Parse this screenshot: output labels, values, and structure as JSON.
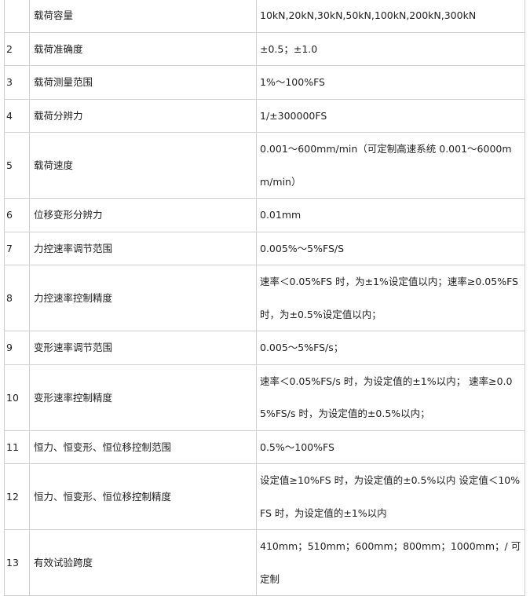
{
  "table": {
    "rows": [
      [
        null,
        "载荷容量",
        "10kN,20kN,30kN,50kN,100kN,200kN,300kN"
      ],
      [
        "2",
        "载荷准确度",
        "±0.5；±1.0"
      ],
      [
        "3",
        "载荷测量范围",
        "1%～100%FS"
      ],
      [
        "4",
        "载荷分辨力",
        "1/±300000FS"
      ],
      [
        "5",
        "载荷速度",
        "0.001～600mm/min（可定制高速系统 0.001～6000mm/min）"
      ],
      [
        "6",
        "位移变形分辨力",
        "0.01mm"
      ],
      [
        "7",
        "力控速率调节范围",
        "0.005%～5%FS/S"
      ],
      [
        "8",
        "力控速率控制精度",
        "速率＜0.05%FS 时，为±1%设定值以内；速率≥0.05%FS 时，为±0.5%设定值以内；"
      ],
      [
        "9",
        "变形速率调节范围",
        "0.005～5%FS/s；"
      ],
      [
        "10",
        "变形速率控制精度",
        "速率＜0.05%FS/s 时，为设定值的±1%以内； 速率≥0.05%FS/s 时，为设定值的±0.5%以内；"
      ],
      [
        "11",
        "恒力、恒变形、恒位移控制范围",
        "0.5%～100%FS"
      ],
      [
        "12",
        "恒力、恒变形、恒位移控制精度",
        "设定值≥10%FS 时，为设定值的±0.5%以内 设定值＜10%FS 时，为设定值的±1%以内"
      ],
      [
        "13",
        "有效试验跨度",
        "410mm；510mm；600mm；800mm；1000mm；/ 可定制"
      ]
    ]
  }
}
